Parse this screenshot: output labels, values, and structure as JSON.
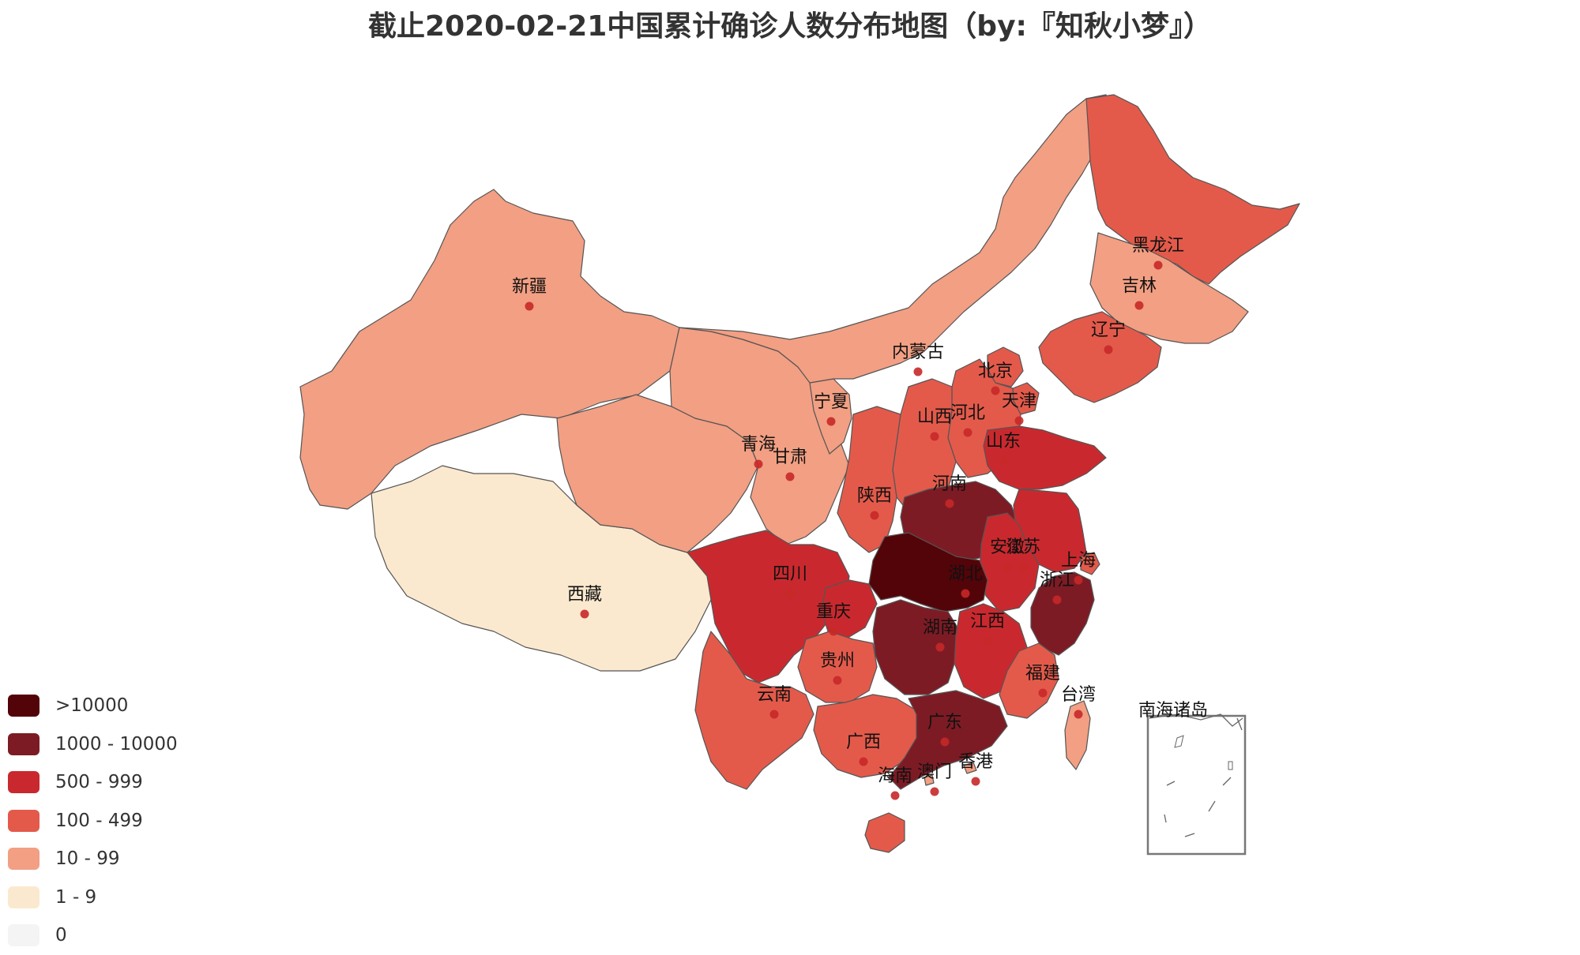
{
  "title": "截止2020-02-21中国累计确诊人数分布地图（by:『知秋小梦』）",
  "legend": [
    {
      "label": ">10000",
      "color": "#530409"
    },
    {
      "label": "1000 - 10000",
      "color": "#7d1b24"
    },
    {
      "label": "500 - 999",
      "color": "#c9292e"
    },
    {
      "label": "100 - 499",
      "color": "#e35a4b"
    },
    {
      "label": "10 - 99",
      "color": "#f29f83"
    },
    {
      "label": "1 - 9",
      "color": "#fbe9cf"
    },
    {
      "label": "0",
      "color": "#f4f4f4"
    }
  ],
  "provinces": [
    {
      "name": "新疆",
      "category": "10 - 99"
    },
    {
      "name": "西藏",
      "category": "1 - 9"
    },
    {
      "name": "青海",
      "category": "10 - 99"
    },
    {
      "name": "甘肃",
      "category": "10 - 99"
    },
    {
      "name": "宁夏",
      "category": "10 - 99"
    },
    {
      "name": "内蒙古",
      "category": "10 - 99"
    },
    {
      "name": "黑龙江",
      "category": "100 - 499"
    },
    {
      "name": "吉林",
      "category": "10 - 99"
    },
    {
      "name": "辽宁",
      "category": "100 - 499"
    },
    {
      "name": "北京",
      "category": "100 - 499"
    },
    {
      "name": "天津",
      "category": "100 - 499"
    },
    {
      "name": "河北",
      "category": "100 - 499"
    },
    {
      "name": "山西",
      "category": "100 - 499"
    },
    {
      "name": "陕西",
      "category": "100 - 499"
    },
    {
      "name": "山东",
      "category": "500 - 999"
    },
    {
      "name": "河南",
      "category": "1000 - 10000"
    },
    {
      "name": "江苏",
      "category": "500 - 999"
    },
    {
      "name": "安徽",
      "category": "500 - 999"
    },
    {
      "name": "上海",
      "category": "100 - 499"
    },
    {
      "name": "浙江",
      "category": "1000 - 10000"
    },
    {
      "name": "湖北",
      "category": ">10000"
    },
    {
      "name": "四川",
      "category": "500 - 999"
    },
    {
      "name": "重庆",
      "category": "500 - 999"
    },
    {
      "name": "湖南",
      "category": "1000 - 10000"
    },
    {
      "name": "江西",
      "category": "500 - 999"
    },
    {
      "name": "贵州",
      "category": "100 - 499"
    },
    {
      "name": "云南",
      "category": "100 - 499"
    },
    {
      "name": "福建",
      "category": "100 - 499"
    },
    {
      "name": "台湾",
      "category": "10 - 99"
    },
    {
      "name": "广西",
      "category": "100 - 499"
    },
    {
      "name": "广东",
      "category": "1000 - 10000"
    },
    {
      "name": "澳门",
      "category": "10 - 99"
    },
    {
      "name": "香港",
      "category": "10 - 99"
    },
    {
      "name": "海南",
      "category": "100 - 499"
    }
  ],
  "inset_label": "南海诸岛"
}
